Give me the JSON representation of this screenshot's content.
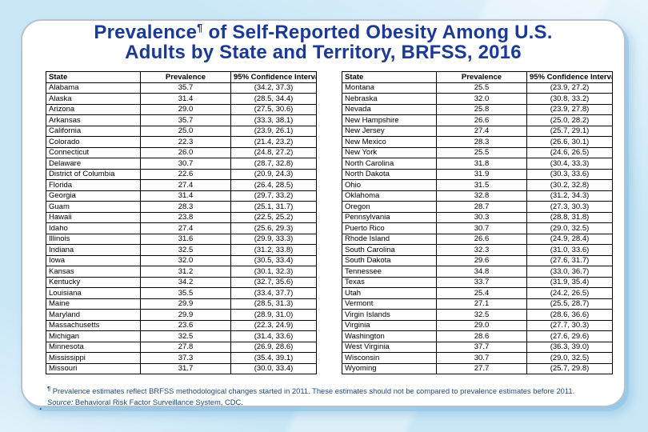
{
  "slide": {
    "title": {
      "line1_before_sup": "Prevalence",
      "sup": "¶",
      "line1_after_sup": " of Self-Reported Obesity Among U.S.",
      "line2": "Adults by State and Territory, BRFSS, 2016"
    },
    "footnote": {
      "sup": "¶",
      "note": "Prevalence estimates reflect BRFSS methodological changes started in 2011. These estimates should not be compared to prevalence estimates before 2011.",
      "source_label": "Source:",
      "source_text": "Behavioral Risk Factor Surveillance System, CDC.",
      "stray_mark": "."
    },
    "colors": {
      "title_text": "#1a3a96",
      "footnote_text": "#1f497d",
      "card_background": "#ffffff",
      "page_background": "#c9e7f6",
      "table_border": "#000000"
    }
  },
  "table_headers": [
    "State",
    "Prevalence",
    "95% Confidence Interval"
  ],
  "tables": [
    {
      "rows": [
        [
          "Alabama",
          "35.7",
          "(34.2, 37.3)"
        ],
        [
          "Alaska",
          "31.4",
          "(28.5, 34.4)"
        ],
        [
          "Arizona",
          "29.0",
          "(27.5, 30.6)"
        ],
        [
          "Arkansas",
          "35.7",
          "(33.3, 38.1)"
        ],
        [
          "California",
          "25.0",
          "(23.9, 26.1)"
        ],
        [
          "Colorado",
          "22.3",
          "(21.4, 23.2)"
        ],
        [
          "Connecticut",
          "26.0",
          "(24.8, 27.2)"
        ],
        [
          "Delaware",
          "30.7",
          "(28.7, 32.8)"
        ],
        [
          "District of Columbia",
          "22.6",
          "(20.9, 24.3)"
        ],
        [
          "Florida",
          "27.4",
          "(26.4, 28.5)"
        ],
        [
          "Georgia",
          "31.4",
          "(29.7, 33.2)"
        ],
        [
          "Guam",
          "28.3",
          "(25.1, 31.7)"
        ],
        [
          "Hawaii",
          "23.8",
          "(22.5, 25.2)"
        ],
        [
          "Idaho",
          "27.4",
          "(25.6, 29.3)"
        ],
        [
          "Illinois",
          "31.6",
          "(29.9, 33.3)"
        ],
        [
          "Indiana",
          "32.5",
          "(31.2, 33.8)"
        ],
        [
          "Iowa",
          "32.0",
          "(30.5, 33.4)"
        ],
        [
          "Kansas",
          "31.2",
          "(30.1, 32.3)"
        ],
        [
          "Kentucky",
          "34.2",
          "(32.7, 35.6)"
        ],
        [
          "Louisiana",
          "35.5",
          "(33.4, 37.7)"
        ],
        [
          "Maine",
          "29.9",
          "(28.5, 31.3)"
        ],
        [
          "Maryland",
          "29.9",
          "(28.9, 31.0)"
        ],
        [
          "Massachusetts",
          "23.6",
          "(22.3, 24.9)"
        ],
        [
          "Michigan",
          "32.5",
          "(31.4, 33.6)"
        ],
        [
          "Minnesota",
          "27.8",
          "(26.9, 28.6)"
        ],
        [
          "Mississippi",
          "37.3",
          "(35.4, 39.1)"
        ],
        [
          "Missouri",
          "31.7",
          "(30.0, 33.4)"
        ]
      ]
    },
    {
      "rows": [
        [
          "Montana",
          "25.5",
          "(23.9, 27.2)"
        ],
        [
          "Nebraska",
          "32.0",
          "(30.8, 33.2)"
        ],
        [
          "Nevada",
          "25.8",
          "(23.9, 27.8)"
        ],
        [
          "New Hampshire",
          "26.6",
          "(25.0, 28.2)"
        ],
        [
          "New Jersey",
          "27.4",
          "(25.7, 29.1)"
        ],
        [
          "New Mexico",
          "28.3",
          "(26.6, 30.1)"
        ],
        [
          "New York",
          "25.5",
          "(24.6, 26.5)"
        ],
        [
          "North Carolina",
          "31.8",
          "(30.4, 33.3)"
        ],
        [
          "North Dakota",
          "31.9",
          "(30.3, 33.6)"
        ],
        [
          "Ohio",
          "31.5",
          "(30.2, 32.8)"
        ],
        [
          "Oklahoma",
          "32.8",
          "(31.2, 34.3)"
        ],
        [
          "Oregon",
          "28.7",
          "(27.3, 30.3)"
        ],
        [
          "Pennsylvania",
          "30.3",
          "(28.8, 31.8)"
        ],
        [
          "Puerto Rico",
          "30.7",
          "(29.0, 32.5)"
        ],
        [
          "Rhode Island",
          "26.6",
          "(24.9, 28.4)"
        ],
        [
          "South Carolina",
          "32.3",
          "(31.0, 33.6)"
        ],
        [
          "South Dakota",
          "29.6",
          "(27.6, 31.7)"
        ],
        [
          "Tennessee",
          "34.8",
          "(33.0, 36.7)"
        ],
        [
          "Texas",
          "33.7",
          "(31.9, 35.4)"
        ],
        [
          "Utah",
          "25.4",
          "(24.2, 26.5)"
        ],
        [
          "Vermont",
          "27.1",
          "(25.5, 28.7)"
        ],
        [
          "Virgin Islands",
          "32.5",
          "(28.6, 36.6)"
        ],
        [
          "Virginia",
          "29.0",
          "(27.7, 30.3)"
        ],
        [
          "Washington",
          "28.6",
          "(27.6, 29.6)"
        ],
        [
          "West Virginia",
          "37.7",
          "(36.3, 39.0)"
        ],
        [
          "Wisconsin",
          "30.7",
          "(29.0, 32.5)"
        ],
        [
          "Wyoming",
          "27.7",
          "(25.7, 29.8)"
        ]
      ]
    }
  ]
}
